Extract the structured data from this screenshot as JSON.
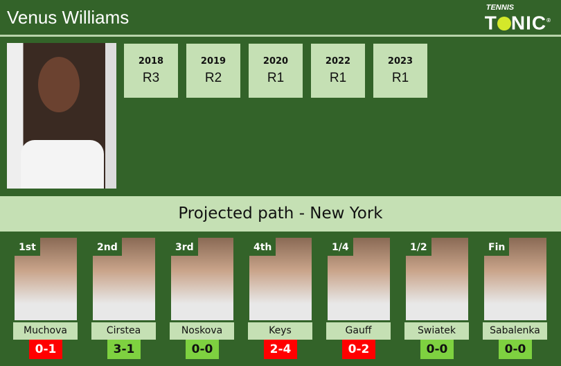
{
  "header": {
    "title": "Venus Williams",
    "logo_small": "TENNIS",
    "logo_big_1": "T",
    "logo_big_2": "NIC",
    "logo_reg": "®"
  },
  "history": [
    {
      "year": "2018",
      "result": "R3"
    },
    {
      "year": "2019",
      "result": "R2"
    },
    {
      "year": "2020",
      "result": "R1"
    },
    {
      "year": "2022",
      "result": "R1"
    },
    {
      "year": "2023",
      "result": "R1"
    }
  ],
  "band": {
    "title": "Projected path - New York"
  },
  "colors": {
    "background": "#336329",
    "light": "#c5e0b4",
    "win": "#7ed140",
    "loss": "#ff0000"
  },
  "path": [
    {
      "round": "1st",
      "name": "Muchova",
      "record": "0-1",
      "status": "loss"
    },
    {
      "round": "2nd",
      "name": "Cirstea",
      "record": "3-1",
      "status": "win"
    },
    {
      "round": "3rd",
      "name": "Noskova",
      "record": "0-0",
      "status": "win"
    },
    {
      "round": "4th",
      "name": "Keys",
      "record": "2-4",
      "status": "loss"
    },
    {
      "round": "1/4",
      "name": "Gauff",
      "record": "0-2",
      "status": "loss"
    },
    {
      "round": "1/2",
      "name": "Swiatek",
      "record": "0-0",
      "status": "win"
    },
    {
      "round": "Fin",
      "name": "Sabalenka",
      "record": "0-0",
      "status": "win"
    }
  ]
}
